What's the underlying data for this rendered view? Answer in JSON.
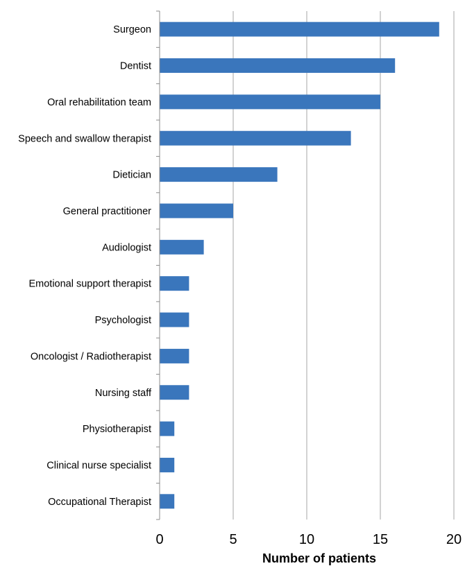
{
  "chart_data": {
    "type": "bar",
    "orientation": "horizontal",
    "categories": [
      "Surgeon",
      "Dentist",
      "Oral rehabilitation team",
      "Speech and swallow therapist",
      "Dietician",
      "General practitioner",
      "Audiologist",
      "Emotional support therapist",
      "Psychologist",
      "Oncologist / Radiotherapist",
      "Nursing staff",
      "Physiotherapist",
      "Clinical nurse specialist",
      "Occupational Therapist"
    ],
    "values": [
      19,
      16,
      15,
      13,
      8,
      5,
      3,
      2,
      2,
      2,
      2,
      1,
      1,
      1
    ],
    "title": "",
    "xlabel": "Number of patients",
    "ylabel": "",
    "xlim": [
      0,
      20
    ],
    "xticks": [
      "0",
      "5",
      "10",
      "15",
      "20"
    ],
    "grid": "vertical",
    "legend": "none",
    "bar_color": "#3a76bc",
    "grid_color": "#a6a6a6",
    "axis_color": "#8c8c8c"
  }
}
